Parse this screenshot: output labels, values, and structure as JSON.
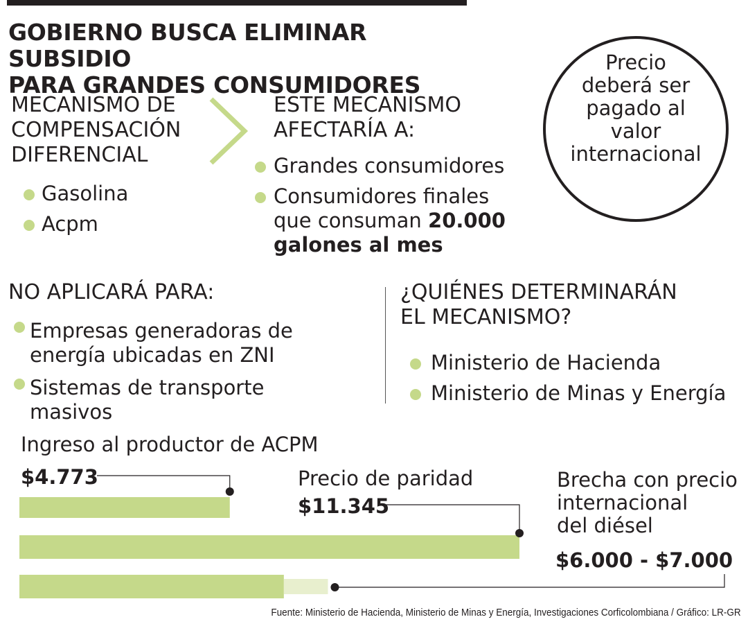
{
  "title_line1": "GOBIERNO BUSCA ELIMINAR SUBSIDIO",
  "title_line2": "PARA GRANDES CONSUMIDORES",
  "mecanismo": {
    "heading": [
      "MECANISMO DE",
      "COMPENSACIÓN",
      "DIFERENCIAL"
    ],
    "items": [
      "Gasolina",
      "Acpm"
    ]
  },
  "afectaria": {
    "heading": [
      "ESTE MECANISMO",
      "AFECTARÍA A:"
    ],
    "item1": "Grandes consumidores",
    "item2_a": "Consumidores finales",
    "item2_b": "que consuman ",
    "item2_bold1": "20.000",
    "item2_bold2": "galones al mes"
  },
  "circle": {
    "line1": "Precio",
    "line2": "deberá ser",
    "line3": "pagado al",
    "line4": "valor",
    "line5": "internacional"
  },
  "no_aplicara": {
    "heading": "NO APLICARÁ PARA:",
    "item1_a": "Empresas generadoras de",
    "item1_b": "energía ubicadas en ZNI",
    "item2": "Sistemas de transporte masivos"
  },
  "quienes": {
    "heading": [
      "¿QUIÉNES DETERMINARÁN",
      "EL MECANISMO?"
    ],
    "items": [
      "Ministerio de Hacienda",
      "Ministerio de Minas y Energía"
    ]
  },
  "chart_data": {
    "type": "bar",
    "orientation": "horizontal",
    "bars": [
      {
        "label": "Ingreso al productor de ACPM",
        "value_label": "$4.773",
        "value": 4773
      },
      {
        "label": "Precio de paridad",
        "value_label": "$11.345",
        "value": 11345
      },
      {
        "label_lines": [
          "Brecha con precio",
          "internacional",
          "del diésel"
        ],
        "value_label": "$6.000 - $7.000",
        "range": [
          6000,
          7000
        ]
      }
    ],
    "xlim": [
      0,
      11345
    ],
    "colors": {
      "bar": "#c5d98a",
      "range": "#e8efce",
      "line": "#231f20"
    }
  },
  "source": "Fuente: Ministerio de Hacienda, Ministerio de Minas y Energía, Investigaciones Corficolombiana / Gráfico: LR-GR"
}
